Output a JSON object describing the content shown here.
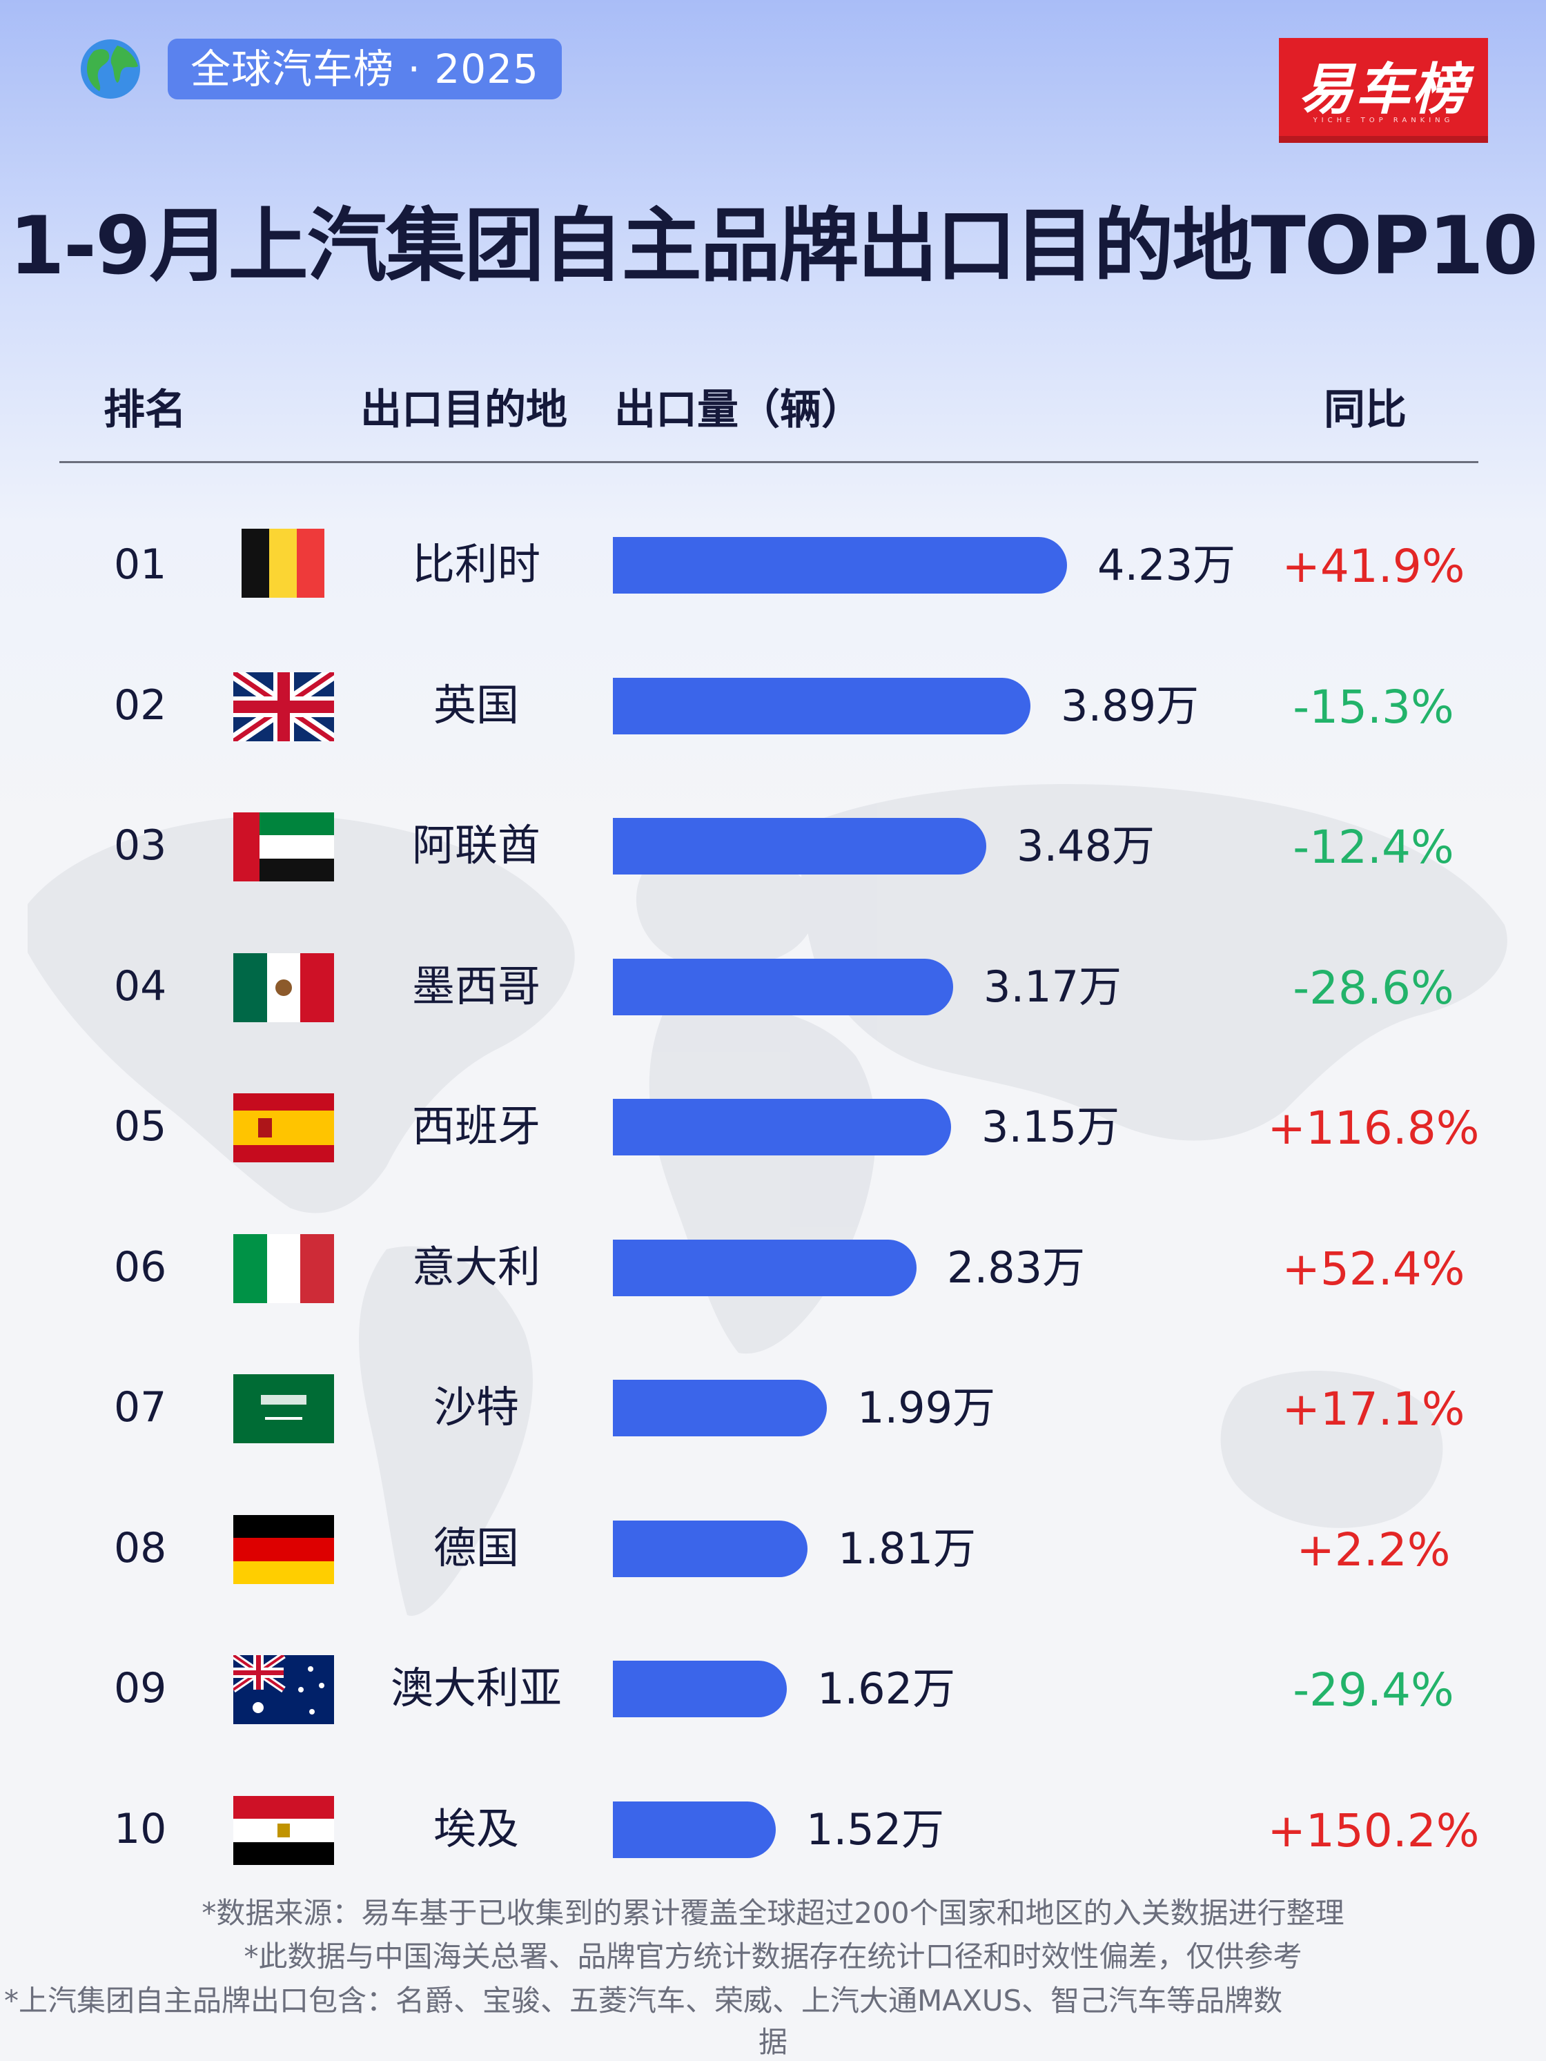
{
  "header": {
    "tag": "全球汽车榜 · 2025",
    "logo": "易车榜",
    "logo_sub": "YICHE TOP RANKING",
    "title": "1-9月上汽集团自主品牌出口目的地TOP10"
  },
  "columns": {
    "rank": "排名",
    "destination": "出口目的地",
    "volume": "出口量（辆）",
    "yoy": "同比"
  },
  "chart_data": {
    "type": "bar",
    "orientation": "horizontal",
    "title": "1-9月上汽集团自主品牌出口目的地TOP10",
    "categories": [
      "比利时",
      "英国",
      "阿联酋",
      "墨西哥",
      "西班牙",
      "意大利",
      "沙特",
      "德国",
      "澳大利亚",
      "埃及"
    ],
    "values": [
      4.23,
      3.89,
      3.48,
      3.17,
      3.15,
      2.83,
      1.99,
      1.81,
      1.62,
      1.52
    ],
    "value_unit": "万",
    "xlim": [
      0,
      4.23
    ],
    "rows": [
      {
        "rank": "01",
        "country": "比利时",
        "flag": "belgium-flag",
        "value": 4.23,
        "value_label": "4.23万",
        "yoy": "+41.9%"
      },
      {
        "rank": "02",
        "country": "英国",
        "flag": "uk-flag",
        "value": 3.89,
        "value_label": "3.89万",
        "yoy": "-15.3%"
      },
      {
        "rank": "03",
        "country": "阿联酋",
        "flag": "uae-flag",
        "value": 3.48,
        "value_label": "3.48万",
        "yoy": "-12.4%"
      },
      {
        "rank": "04",
        "country": "墨西哥",
        "flag": "mexico-flag",
        "value": 3.17,
        "value_label": "3.17万",
        "yoy": "-28.6%"
      },
      {
        "rank": "05",
        "country": "西班牙",
        "flag": "spain-flag",
        "value": 3.15,
        "value_label": "3.15万",
        "yoy": "+116.8%"
      },
      {
        "rank": "06",
        "country": "意大利",
        "flag": "italy-flag",
        "value": 2.83,
        "value_label": "2.83万",
        "yoy": "+52.4%"
      },
      {
        "rank": "07",
        "country": "沙特",
        "flag": "saudi-arabia-flag",
        "value": 1.99,
        "value_label": "1.99万",
        "yoy": "+17.1%"
      },
      {
        "rank": "08",
        "country": "德国",
        "flag": "germany-flag",
        "value": 1.81,
        "value_label": "1.81万",
        "yoy": "+2.2%"
      },
      {
        "rank": "09",
        "country": "澳大利亚",
        "flag": "australia-flag",
        "value": 1.62,
        "value_label": "1.62万",
        "yoy": "-29.4%"
      },
      {
        "rank": "10",
        "country": "埃及",
        "flag": "egypt-flag",
        "value": 1.52,
        "value_label": "1.52万",
        "yoy": "+150.2%"
      }
    ]
  },
  "colors": {
    "bar": "#3b65ea",
    "positive": "#e32626",
    "negative": "#22b36a",
    "accent": "#5a82ee",
    "logo": "#e11e26"
  },
  "footnotes": [
    "*数据来源：易车基于已收集到的累计覆盖全球超过200个国家和地区的入关数据进行整理",
    "*此数据与中国海关总署、品牌官方统计数据存在统计口径和时效性偏差，仅供参考",
    "*上汽集团自主品牌出口包含：名爵、宝骏、五菱汽车、荣威、上汽大通MAXUS、智己汽车等品牌数",
    "据"
  ]
}
